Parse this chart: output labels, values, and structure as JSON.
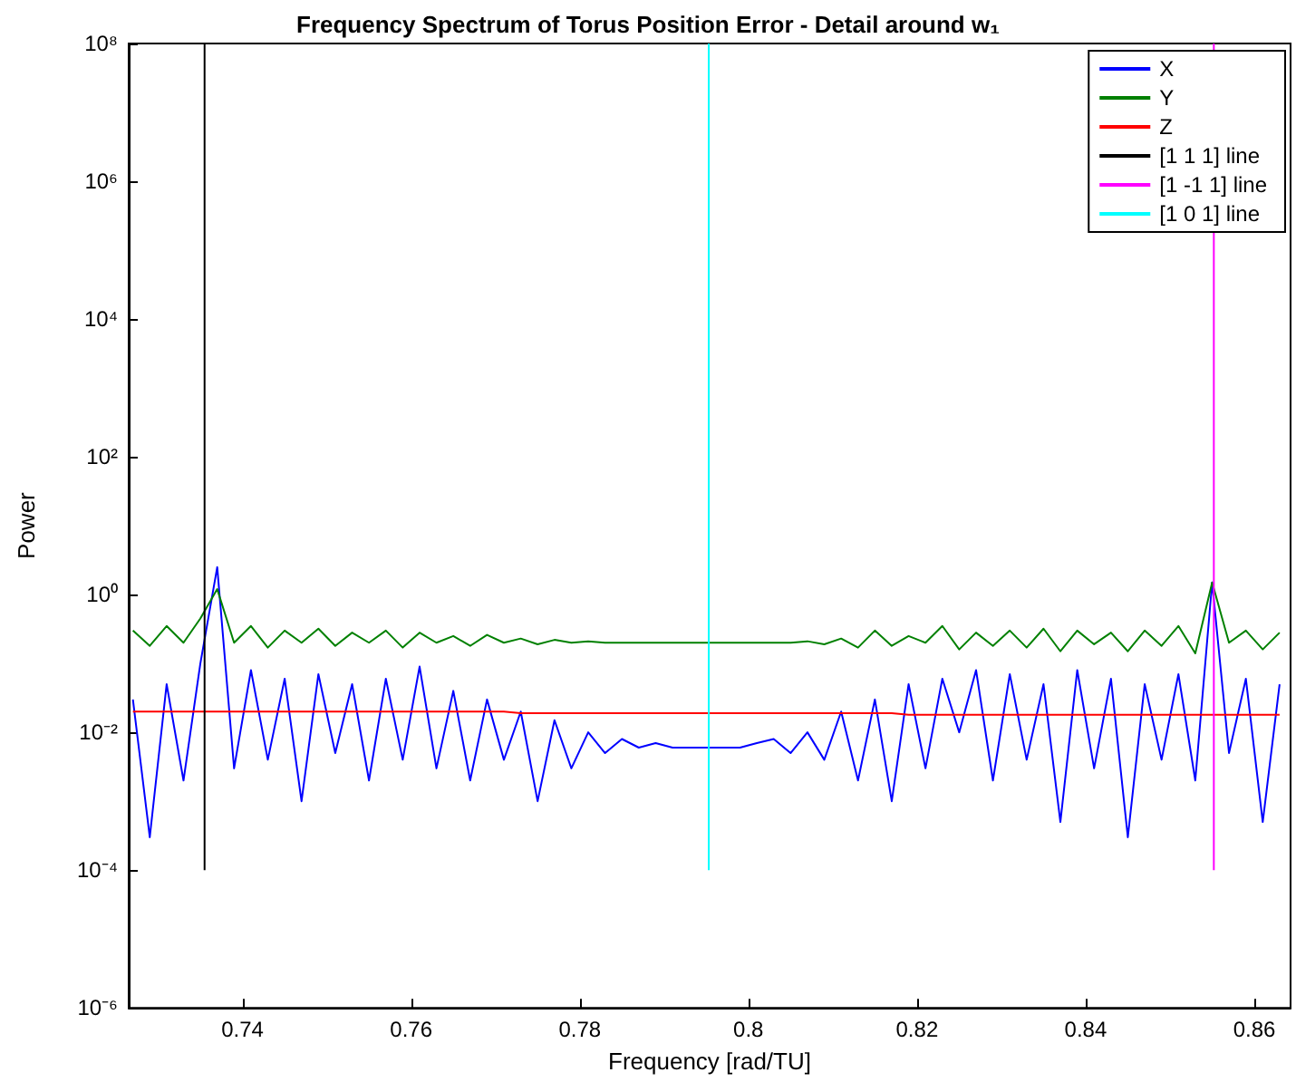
{
  "chart_data": {
    "type": "line",
    "title": "Frequency Spectrum of Torus Position Error - Detail around w₁",
    "xlabel": "Frequency [rad/TU]",
    "ylabel": "Power",
    "x": [
      0.727,
      0.729,
      0.731,
      0.733,
      0.735,
      0.737,
      0.739,
      0.741,
      0.743,
      0.745,
      0.747,
      0.749,
      0.751,
      0.753,
      0.755,
      0.757,
      0.759,
      0.761,
      0.763,
      0.765,
      0.767,
      0.769,
      0.771,
      0.773,
      0.775,
      0.777,
      0.779,
      0.781,
      0.783,
      0.785,
      0.787,
      0.789,
      0.791,
      0.793,
      0.795,
      0.797,
      0.799,
      0.801,
      0.803,
      0.805,
      0.807,
      0.809,
      0.811,
      0.813,
      0.815,
      0.817,
      0.819,
      0.821,
      0.823,
      0.825,
      0.827,
      0.829,
      0.831,
      0.833,
      0.835,
      0.837,
      0.839,
      0.841,
      0.843,
      0.845,
      0.847,
      0.849,
      0.851,
      0.853,
      0.855,
      0.857,
      0.859,
      0.861,
      0.863
    ],
    "series": [
      {
        "name": "X",
        "color": "#0000ff",
        "values": [
          0.03,
          0.0003,
          0.05,
          0.002,
          0.1,
          2.5,
          0.003,
          0.08,
          0.004,
          0.06,
          0.001,
          0.07,
          0.005,
          0.05,
          0.002,
          0.06,
          0.004,
          0.09,
          0.003,
          0.04,
          0.002,
          0.03,
          0.004,
          0.02,
          0.001,
          0.015,
          0.003,
          0.01,
          0.005,
          0.008,
          0.006,
          0.007,
          0.006,
          0.006,
          0.006,
          0.006,
          0.006,
          0.007,
          0.008,
          0.005,
          0.01,
          0.004,
          0.02,
          0.002,
          0.03,
          0.001,
          0.05,
          0.003,
          0.06,
          0.01,
          0.08,
          0.002,
          0.07,
          0.004,
          0.05,
          0.0005,
          0.08,
          0.003,
          0.06,
          0.0003,
          0.05,
          0.004,
          0.07,
          0.002,
          1.5,
          0.005,
          0.06,
          0.0005,
          0.05
        ]
      },
      {
        "name": "Y",
        "color": "#008000",
        "values": [
          0.3,
          0.18,
          0.35,
          0.2,
          0.45,
          1.2,
          0.2,
          0.35,
          0.17,
          0.3,
          0.2,
          0.32,
          0.18,
          0.28,
          0.2,
          0.3,
          0.17,
          0.28,
          0.2,
          0.25,
          0.18,
          0.26,
          0.2,
          0.23,
          0.19,
          0.22,
          0.2,
          0.21,
          0.2,
          0.2,
          0.2,
          0.2,
          0.2,
          0.2,
          0.2,
          0.2,
          0.2,
          0.2,
          0.2,
          0.2,
          0.21,
          0.19,
          0.23,
          0.17,
          0.3,
          0.18,
          0.25,
          0.2,
          0.35,
          0.16,
          0.28,
          0.18,
          0.3,
          0.17,
          0.32,
          0.15,
          0.3,
          0.19,
          0.28,
          0.15,
          0.3,
          0.18,
          0.35,
          0.14,
          1.5,
          0.2,
          0.3,
          0.16,
          0.28
        ]
      },
      {
        "name": "Z",
        "color": "#ff0000",
        "values": [
          0.02,
          0.02,
          0.02,
          0.02,
          0.02,
          0.02,
          0.02,
          0.02,
          0.02,
          0.02,
          0.02,
          0.02,
          0.02,
          0.02,
          0.02,
          0.02,
          0.02,
          0.02,
          0.02,
          0.02,
          0.02,
          0.02,
          0.02,
          0.019,
          0.019,
          0.019,
          0.019,
          0.019,
          0.019,
          0.019,
          0.019,
          0.019,
          0.019,
          0.019,
          0.019,
          0.019,
          0.019,
          0.019,
          0.019,
          0.019,
          0.019,
          0.019,
          0.019,
          0.019,
          0.019,
          0.019,
          0.018,
          0.018,
          0.018,
          0.018,
          0.018,
          0.018,
          0.018,
          0.018,
          0.018,
          0.018,
          0.018,
          0.018,
          0.018,
          0.018,
          0.018,
          0.018,
          0.018,
          0.018,
          0.018,
          0.018,
          0.018,
          0.018,
          0.018
        ]
      },
      {
        "name": "[1 1 1] line",
        "color": "#000000",
        "x": [
          0.7355,
          0.7355
        ],
        "values": [
          0.0001,
          100000000
        ]
      },
      {
        "name": "[1 -1 1] line",
        "color": "#ff00ff",
        "x": [
          0.8552,
          0.8552
        ],
        "values": [
          0.0001,
          100000000
        ]
      },
      {
        "name": "[1 0 1] line",
        "color": "#00ffff",
        "x": [
          0.7953,
          0.7953
        ],
        "values": [
          0.0001,
          100000000
        ]
      }
    ],
    "xlim": [
      0.7265,
      0.8643
    ],
    "xticks": [
      0.74,
      0.76,
      0.78,
      0.8,
      0.82,
      0.84,
      0.86
    ],
    "log": "y",
    "ylim": [
      1e-06,
      100000000
    ],
    "yticks": [
      {
        "value": 1e-06,
        "label": "10⁻⁶"
      },
      {
        "value": 0.0001,
        "label": "10⁻⁴"
      },
      {
        "value": 0.01,
        "label": "10⁻²"
      },
      {
        "value": 1,
        "label": "10⁰"
      },
      {
        "value": 100,
        "label": "10²"
      },
      {
        "value": 10000,
        "label": "10⁴"
      },
      {
        "value": 1000000,
        "label": "10⁶"
      },
      {
        "value": 100000000,
        "label": "10⁸"
      }
    ],
    "grid": false,
    "legend": "top right",
    "marker": "none",
    "line_style": "solid"
  }
}
